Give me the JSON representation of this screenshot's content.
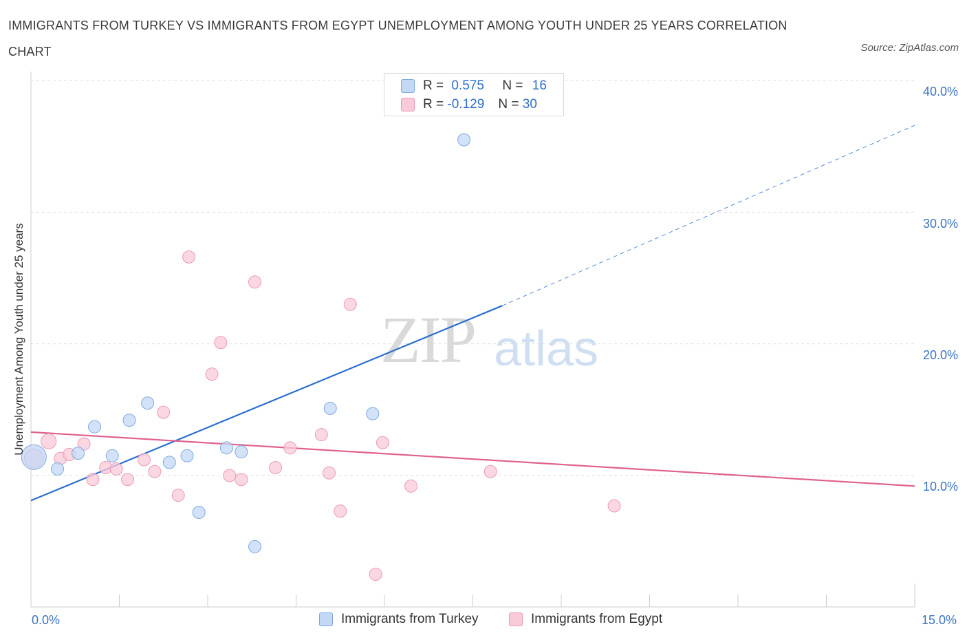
{
  "title": "IMMIGRANTS FROM TURKEY VS IMMIGRANTS FROM EGYPT UNEMPLOYMENT AMONG YOUTH UNDER 25 YEARS CORRELATION CHART",
  "source": "Source: ZipAtlas.com",
  "watermark": {
    "zip": "ZIP",
    "atlas": "atlas"
  },
  "colors": {
    "turkey_fill": "#c3d8f5",
    "turkey_stroke": "#7ea8e0",
    "turkey_line": "#2a6fcf",
    "egypt_fill": "#f9cad8",
    "egypt_stroke": "#ea9ab4",
    "egypt_line": "#e0608c",
    "grid": "#dddddd",
    "tick_text": "#3a73c4"
  },
  "legend": {
    "turkey": {
      "r_label": "R =",
      "r_value": "0.575",
      "n_label": "N =",
      "n_value": "16"
    },
    "egypt": {
      "r_label": "R =",
      "r_value": "-0.129",
      "n_label": "N =",
      "n_value": "30"
    }
  },
  "chart_data": {
    "type": "scatter",
    "title": "IMMIGRANTS FROM TURKEY VS IMMIGRANTS FROM EGYPT UNEMPLOYMENT AMONG YOUTH UNDER 25 YEARS CORRELATION CHART",
    "xlabel": "",
    "ylabel": "Unemployment Among Youth under 25 years",
    "xlim": [
      0,
      15
    ],
    "ylim": [
      0,
      40
    ],
    "x_tick_labels": [
      "0.0%",
      "15.0%"
    ],
    "y_ticks": [
      10,
      20,
      30,
      40
    ],
    "y_tick_labels": [
      "10.0%",
      "20.0%",
      "30.0%",
      "40.0%"
    ],
    "grid": true,
    "legend_position": "bottom-center",
    "series": [
      {
        "name": "Immigrants from Turkey",
        "r": 0.575,
        "n": 16,
        "points": [
          [
            0.05,
            11.4
          ],
          [
            0.45,
            10.5
          ],
          [
            0.8,
            11.7
          ],
          [
            1.08,
            13.7
          ],
          [
            1.38,
            11.5
          ],
          [
            1.67,
            14.2
          ],
          [
            1.98,
            15.5
          ],
          [
            2.35,
            11.0
          ],
          [
            2.85,
            7.2
          ],
          [
            2.65,
            11.5
          ],
          [
            3.32,
            12.1
          ],
          [
            3.57,
            11.8
          ],
          [
            3.8,
            4.6
          ],
          [
            5.08,
            15.1
          ],
          [
            5.8,
            14.7
          ],
          [
            7.35,
            35.5
          ]
        ],
        "sizes": [
          18,
          9,
          9,
          9,
          9,
          9,
          9,
          9,
          9,
          9,
          9,
          9,
          9,
          9,
          9,
          9
        ],
        "trend": {
          "x0": 0,
          "y0": 8.1,
          "x1": 8.0,
          "y1": 22.9,
          "dashed_to_x": 15.0,
          "dashed_to_y": 36.6
        }
      },
      {
        "name": "Immigrants from Egypt",
        "r": -0.129,
        "n": 30,
        "points": [
          [
            0.05,
            11.3
          ],
          [
            0.3,
            12.6
          ],
          [
            0.5,
            11.3
          ],
          [
            0.65,
            11.6
          ],
          [
            0.9,
            12.4
          ],
          [
            1.05,
            9.7
          ],
          [
            1.27,
            10.6
          ],
          [
            1.45,
            10.5
          ],
          [
            1.64,
            9.7
          ],
          [
            1.92,
            11.2
          ],
          [
            2.1,
            10.3
          ],
          [
            2.25,
            14.8
          ],
          [
            2.5,
            8.5
          ],
          [
            2.68,
            26.6
          ],
          [
            3.07,
            17.7
          ],
          [
            3.22,
            20.1
          ],
          [
            3.37,
            10.0
          ],
          [
            3.57,
            9.7
          ],
          [
            3.8,
            24.7
          ],
          [
            4.15,
            10.6
          ],
          [
            4.4,
            12.1
          ],
          [
            4.93,
            13.1
          ],
          [
            5.06,
            10.2
          ],
          [
            5.25,
            7.3
          ],
          [
            5.42,
            23.0
          ],
          [
            5.85,
            2.5
          ],
          [
            5.97,
            12.5
          ],
          [
            6.45,
            9.2
          ],
          [
            7.8,
            10.3
          ],
          [
            9.9,
            7.7
          ]
        ],
        "sizes": [
          14,
          11,
          9,
          9,
          9,
          9,
          9,
          9,
          9,
          9,
          9,
          9,
          9,
          9,
          9,
          9,
          9,
          9,
          9,
          9,
          9,
          9,
          9,
          9,
          9,
          9,
          9,
          9,
          9,
          9
        ],
        "trend": {
          "x0": 0,
          "y0": 13.3,
          "x1": 15.0,
          "y1": 9.2
        }
      }
    ]
  }
}
